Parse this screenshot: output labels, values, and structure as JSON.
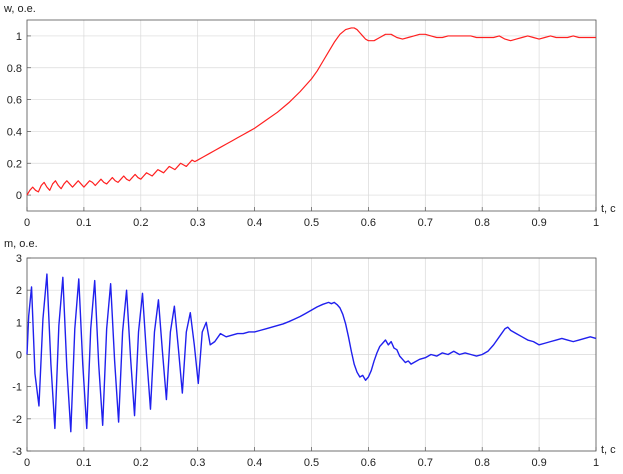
{
  "figure": {
    "background": "#ffffff",
    "grid_color": "#d9d9d9",
    "axes_color": "#555555"
  },
  "chart_data": [
    {
      "type": "line",
      "ylabel": "w, o.e.",
      "xlabel": "t, c",
      "xlim": [
        0,
        1
      ],
      "ylim": [
        -0.1,
        1.1
      ],
      "xticks": [
        0,
        0.1,
        0.2,
        0.3,
        0.4,
        0.5,
        0.6,
        0.7,
        0.8,
        0.9,
        1
      ],
      "xtick_labels": [
        "0",
        "0.1",
        "0.2",
        "0.3",
        "0.4",
        "0.5",
        "0.6",
        "0.7",
        "0.8",
        "0.9",
        "1"
      ],
      "yticks": [
        0,
        0.2,
        0.4,
        0.6,
        0.8,
        1
      ],
      "ytick_labels": [
        "0",
        "0.2",
        "0.4",
        "0.6",
        "0.8",
        "1"
      ],
      "grid": true,
      "series": [
        {
          "color": "#ff2020",
          "x": [
            0.0,
            0.005,
            0.01,
            0.015,
            0.02,
            0.025,
            0.03,
            0.035,
            0.04,
            0.045,
            0.05,
            0.055,
            0.06,
            0.065,
            0.07,
            0.075,
            0.08,
            0.085,
            0.09,
            0.095,
            0.1,
            0.105,
            0.11,
            0.115,
            0.12,
            0.125,
            0.13,
            0.135,
            0.14,
            0.145,
            0.15,
            0.155,
            0.16,
            0.165,
            0.17,
            0.175,
            0.18,
            0.185,
            0.19,
            0.195,
            0.2,
            0.205,
            0.21,
            0.215,
            0.22,
            0.225,
            0.23,
            0.235,
            0.24,
            0.245,
            0.25,
            0.255,
            0.26,
            0.265,
            0.27,
            0.275,
            0.28,
            0.285,
            0.29,
            0.295,
            0.3,
            0.31,
            0.32,
            0.33,
            0.34,
            0.35,
            0.36,
            0.37,
            0.38,
            0.39,
            0.4,
            0.42,
            0.44,
            0.46,
            0.48,
            0.5,
            0.51,
            0.52,
            0.53,
            0.54,
            0.55,
            0.56,
            0.57,
            0.575,
            0.58,
            0.585,
            0.59,
            0.595,
            0.6,
            0.61,
            0.62,
            0.63,
            0.64,
            0.65,
            0.66,
            0.67,
            0.68,
            0.69,
            0.7,
            0.71,
            0.72,
            0.73,
            0.74,
            0.75,
            0.76,
            0.77,
            0.78,
            0.79,
            0.8,
            0.81,
            0.82,
            0.83,
            0.84,
            0.85,
            0.86,
            0.87,
            0.88,
            0.89,
            0.9,
            0.91,
            0.92,
            0.93,
            0.94,
            0.95,
            0.96,
            0.97,
            0.98,
            0.99,
            1.0
          ],
          "values": [
            0.0,
            0.03,
            0.05,
            0.03,
            0.02,
            0.06,
            0.08,
            0.05,
            0.03,
            0.07,
            0.09,
            0.06,
            0.04,
            0.07,
            0.09,
            0.07,
            0.05,
            0.07,
            0.09,
            0.07,
            0.05,
            0.07,
            0.09,
            0.08,
            0.06,
            0.08,
            0.1,
            0.08,
            0.07,
            0.09,
            0.11,
            0.09,
            0.08,
            0.1,
            0.12,
            0.1,
            0.09,
            0.11,
            0.13,
            0.11,
            0.1,
            0.12,
            0.14,
            0.13,
            0.12,
            0.14,
            0.16,
            0.15,
            0.14,
            0.16,
            0.18,
            0.17,
            0.16,
            0.18,
            0.2,
            0.19,
            0.18,
            0.2,
            0.22,
            0.21,
            0.22,
            0.24,
            0.26,
            0.28,
            0.3,
            0.32,
            0.34,
            0.36,
            0.38,
            0.4,
            0.42,
            0.47,
            0.52,
            0.58,
            0.65,
            0.73,
            0.78,
            0.84,
            0.9,
            0.96,
            1.01,
            1.04,
            1.05,
            1.05,
            1.04,
            1.02,
            1.0,
            0.98,
            0.97,
            0.97,
            0.99,
            1.01,
            1.01,
            0.99,
            0.98,
            0.99,
            1.0,
            1.01,
            1.01,
            1.0,
            0.99,
            0.99,
            1.0,
            1.0,
            1.0,
            1.0,
            1.0,
            0.99,
            0.99,
            0.99,
            0.99,
            1.0,
            0.98,
            0.97,
            0.98,
            0.99,
            1.0,
            0.99,
            0.98,
            0.99,
            1.0,
            0.99,
            0.99,
            0.99,
            1.0,
            0.99,
            0.99,
            0.99,
            0.99
          ]
        }
      ]
    },
    {
      "type": "line",
      "ylabel": "m, o.e.",
      "xlabel": "t, c",
      "xlim": [
        0,
        1
      ],
      "ylim": [
        -3,
        3
      ],
      "xticks": [
        0,
        0.1,
        0.2,
        0.3,
        0.4,
        0.5,
        0.6,
        0.7,
        0.8,
        0.9,
        1
      ],
      "xtick_labels": [
        "0",
        "0.1",
        "0.2",
        "0.3",
        "0.4",
        "0.5",
        "0.6",
        "0.7",
        "0.8",
        "0.9",
        "1"
      ],
      "yticks": [
        -3,
        -2,
        -1,
        0,
        1,
        2,
        3
      ],
      "ytick_labels": [
        "-3",
        "-2",
        "-1",
        "0",
        "1",
        "2",
        "3"
      ],
      "grid": true,
      "series": [
        {
          "color": "#2020ee",
          "x": [
            0.0,
            0.003,
            0.008,
            0.014,
            0.021,
            0.028,
            0.035,
            0.042,
            0.049,
            0.056,
            0.063,
            0.07,
            0.077,
            0.084,
            0.091,
            0.098,
            0.105,
            0.112,
            0.119,
            0.126,
            0.133,
            0.14,
            0.147,
            0.154,
            0.161,
            0.168,
            0.175,
            0.182,
            0.189,
            0.196,
            0.203,
            0.21,
            0.217,
            0.224,
            0.231,
            0.238,
            0.245,
            0.252,
            0.259,
            0.266,
            0.273,
            0.28,
            0.287,
            0.294,
            0.301,
            0.308,
            0.315,
            0.322,
            0.33,
            0.34,
            0.35,
            0.36,
            0.37,
            0.38,
            0.39,
            0.4,
            0.41,
            0.42,
            0.43,
            0.44,
            0.45,
            0.46,
            0.47,
            0.48,
            0.49,
            0.5,
            0.51,
            0.52,
            0.53,
            0.535,
            0.54,
            0.545,
            0.55,
            0.555,
            0.56,
            0.565,
            0.57,
            0.575,
            0.58,
            0.585,
            0.59,
            0.595,
            0.6,
            0.605,
            0.61,
            0.615,
            0.62,
            0.625,
            0.63,
            0.635,
            0.64,
            0.645,
            0.65,
            0.655,
            0.66,
            0.665,
            0.67,
            0.675,
            0.68,
            0.69,
            0.7,
            0.71,
            0.72,
            0.73,
            0.74,
            0.75,
            0.76,
            0.77,
            0.78,
            0.79,
            0.8,
            0.81,
            0.82,
            0.83,
            0.84,
            0.845,
            0.85,
            0.86,
            0.87,
            0.88,
            0.89,
            0.9,
            0.91,
            0.92,
            0.93,
            0.94,
            0.95,
            0.96,
            0.97,
            0.98,
            0.99,
            1.0
          ],
          "values": [
            0.0,
            1.2,
            2.1,
            -0.6,
            -1.6,
            1.1,
            2.5,
            -0.3,
            -2.3,
            0.9,
            2.4,
            -0.4,
            -2.4,
            0.8,
            2.35,
            -0.3,
            -2.3,
            0.8,
            2.3,
            -0.3,
            -2.2,
            0.8,
            2.2,
            -0.2,
            -2.1,
            0.7,
            2.0,
            -0.1,
            -1.9,
            0.7,
            1.9,
            0.0,
            -1.7,
            0.7,
            1.7,
            0.1,
            -1.4,
            0.7,
            1.5,
            0.2,
            -1.2,
            0.7,
            1.3,
            0.3,
            -0.9,
            0.7,
            1.0,
            0.3,
            0.4,
            0.65,
            0.55,
            0.6,
            0.65,
            0.65,
            0.7,
            0.7,
            0.75,
            0.8,
            0.85,
            0.9,
            0.95,
            1.02,
            1.1,
            1.18,
            1.28,
            1.38,
            1.48,
            1.56,
            1.62,
            1.58,
            1.62,
            1.55,
            1.45,
            1.25,
            0.95,
            0.55,
            0.1,
            -0.3,
            -0.55,
            -0.7,
            -0.65,
            -0.8,
            -0.7,
            -0.5,
            -0.2,
            0.05,
            0.25,
            0.35,
            0.45,
            0.3,
            0.4,
            0.2,
            0.15,
            -0.05,
            -0.15,
            -0.25,
            -0.2,
            -0.3,
            -0.25,
            -0.15,
            -0.1,
            0.0,
            -0.05,
            0.05,
            0.0,
            0.1,
            0.0,
            0.05,
            0.0,
            -0.05,
            0.0,
            0.1,
            0.3,
            0.55,
            0.8,
            0.85,
            0.75,
            0.65,
            0.55,
            0.45,
            0.4,
            0.3,
            0.35,
            0.4,
            0.45,
            0.5,
            0.45,
            0.4,
            0.45,
            0.5,
            0.55,
            0.5
          ]
        }
      ]
    }
  ]
}
